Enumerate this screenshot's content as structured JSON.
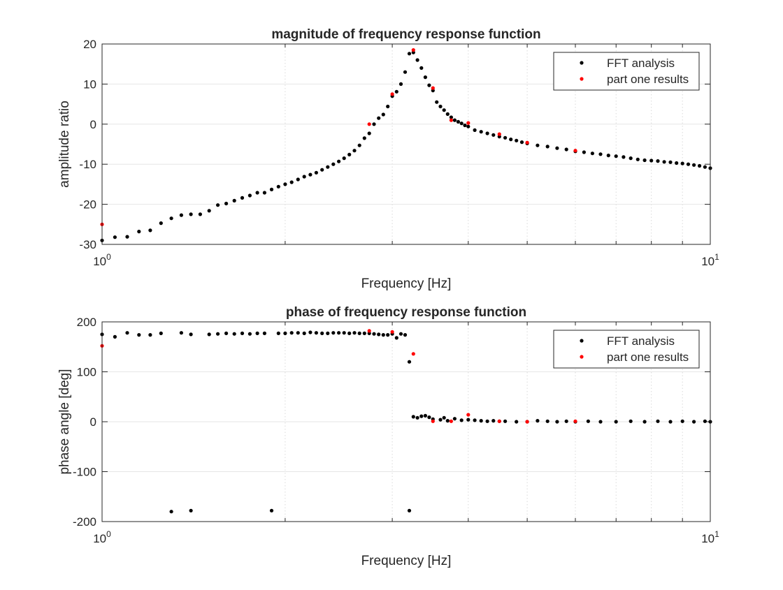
{
  "chart_data": [
    {
      "type": "scatter",
      "title": "magnitude of frequency response function",
      "xlabel": "Frequency [Hz]",
      "ylabel": "amplitude ratio",
      "xscale": "log",
      "xlim": [
        1,
        10
      ],
      "ylim": [
        -30,
        20
      ],
      "xtick_labels": [
        {
          "base": "10",
          "exp": "0"
        },
        {
          "base": "10",
          "exp": "1"
        }
      ],
      "ytick_labels": [
        "-30",
        "-20",
        "-10",
        "0",
        "10",
        "20"
      ],
      "grid": true,
      "legend_position": "top-right",
      "series": [
        {
          "name": "FFT analysis",
          "color": "#000000",
          "x": [
            1.0,
            1.05,
            1.1,
            1.15,
            1.2,
            1.25,
            1.3,
            1.35,
            1.4,
            1.45,
            1.5,
            1.55,
            1.6,
            1.65,
            1.7,
            1.75,
            1.8,
            1.85,
            1.9,
            1.95,
            2.0,
            2.05,
            2.1,
            2.15,
            2.2,
            2.25,
            2.3,
            2.35,
            2.4,
            2.45,
            2.5,
            2.55,
            2.6,
            2.65,
            2.7,
            2.75,
            2.8,
            2.85,
            2.9,
            2.95,
            3.0,
            3.05,
            3.1,
            3.15,
            3.2,
            3.25,
            3.3,
            3.35,
            3.4,
            3.45,
            3.5,
            3.55,
            3.6,
            3.65,
            3.7,
            3.75,
            3.8,
            3.85,
            3.9,
            3.95,
            4.0,
            4.1,
            4.2,
            4.3,
            4.4,
            4.5,
            4.6,
            4.7,
            4.8,
            4.9,
            5.0,
            5.2,
            5.4,
            5.6,
            5.8,
            6.0,
            6.2,
            6.4,
            6.6,
            6.8,
            7.0,
            7.2,
            7.4,
            7.6,
            7.8,
            8.0,
            8.2,
            8.4,
            8.6,
            8.8,
            9.0,
            9.2,
            9.4,
            9.6,
            9.8,
            10.0
          ],
          "y": [
            -29,
            -28.2,
            -28.1,
            -26.8,
            -26.5,
            -24.7,
            -23.5,
            -22.7,
            -22.5,
            -22.5,
            -21.6,
            -20.2,
            -19.8,
            -19.1,
            -18.4,
            -17.8,
            -17.1,
            -17.1,
            -16.3,
            -15.6,
            -15.0,
            -14.5,
            -13.8,
            -13.1,
            -12.6,
            -12.1,
            -11.4,
            -10.7,
            -10.0,
            -9.3,
            -8.5,
            -7.6,
            -6.6,
            -5.3,
            -3.5,
            -2.3,
            0.0,
            1.5,
            2.4,
            4.4,
            7.0,
            8.1,
            10.0,
            13.0,
            17.6,
            17.9,
            16.0,
            14.0,
            11.7,
            9.7,
            8.4,
            5.5,
            4.4,
            3.5,
            2.5,
            1.7,
            1.0,
            0.6,
            0.2,
            -0.3,
            -0.6,
            -1.5,
            -1.9,
            -2.3,
            -2.7,
            -3.1,
            -3.4,
            -3.8,
            -4.1,
            -4.5,
            -4.8,
            -5.3,
            -5.6,
            -6.0,
            -6.3,
            -6.8,
            -7.0,
            -7.3,
            -7.5,
            -7.8,
            -8.0,
            -8.2,
            -8.5,
            -8.8,
            -9.0,
            -9.1,
            -9.2,
            -9.4,
            -9.5,
            -9.7,
            -9.8,
            -10.0,
            -10.2,
            -10.4,
            -10.7,
            -11.0
          ]
        },
        {
          "name": "part one results",
          "color": "#ff0000",
          "x": [
            1.0,
            2.75,
            3.0,
            3.25,
            3.5,
            3.75,
            4.0,
            4.5,
            5.0,
            6.0
          ],
          "y": [
            -25.0,
            0.0,
            7.5,
            18.5,
            9.0,
            1.0,
            0.3,
            -2.5,
            -4.6,
            -6.6
          ]
        }
      ]
    },
    {
      "type": "scatter",
      "title": "phase of frequency response function",
      "xlabel": "Frequency [Hz]",
      "ylabel": "phase angle [deg]",
      "xscale": "log",
      "xlim": [
        1,
        10
      ],
      "ylim": [
        -200,
        200
      ],
      "xtick_labels": [
        {
          "base": "10",
          "exp": "0"
        },
        {
          "base": "10",
          "exp": "1"
        }
      ],
      "ytick_labels": [
        "-200",
        "-100",
        "0",
        "100",
        "200"
      ],
      "grid": true,
      "legend_position": "top-right",
      "series": [
        {
          "name": "FFT analysis",
          "color": "#000000",
          "x": [
            1.0,
            1.05,
            1.1,
            1.15,
            1.2,
            1.25,
            1.35,
            1.4,
            1.5,
            1.55,
            1.6,
            1.65,
            1.7,
            1.75,
            1.8,
            1.85,
            1.95,
            2.0,
            2.05,
            2.1,
            2.15,
            2.2,
            2.25,
            2.3,
            2.35,
            2.4,
            2.45,
            2.5,
            2.55,
            2.6,
            2.65,
            2.7,
            2.75,
            2.8,
            2.85,
            2.9,
            2.95,
            3.0,
            3.05,
            3.1,
            3.15,
            3.2,
            3.25,
            3.3,
            3.35,
            3.4,
            3.45,
            3.5,
            3.6,
            3.65,
            3.7,
            3.8,
            3.9,
            4.0,
            4.1,
            4.2,
            4.3,
            4.4,
            4.5,
            4.6,
            4.8,
            5.0,
            5.2,
            5.4,
            5.6,
            5.8,
            6.0,
            6.3,
            6.6,
            7.0,
            7.4,
            7.8,
            8.2,
            8.6,
            9.0,
            9.4,
            9.8,
            10.0,
            1.3,
            1.4,
            1.9,
            3.2
          ],
          "y": [
            175,
            170,
            178,
            174,
            174,
            177,
            178,
            175,
            175,
            176,
            177,
            176,
            177,
            176,
            177,
            177,
            177,
            177,
            178,
            178,
            177,
            179,
            178,
            177,
            177,
            178,
            178,
            178,
            177,
            178,
            177,
            177,
            177,
            176,
            175,
            174,
            174,
            176,
            168,
            176,
            174,
            120,
            10,
            8,
            11,
            12,
            9,
            5,
            4,
            8,
            2,
            6,
            3,
            4,
            3,
            2,
            1,
            2,
            1,
            1,
            0,
            0,
            2,
            1,
            0,
            1,
            0,
            1,
            0,
            0,
            1,
            0,
            1,
            0,
            1,
            0,
            1,
            0,
            -180,
            -178,
            -178,
            -178
          ]
        },
        {
          "name": "part one results",
          "color": "#ff0000",
          "x": [
            1.0,
            2.75,
            3.0,
            3.25,
            3.5,
            3.75,
            4.0,
            4.5,
            5.0,
            6.0
          ],
          "y": [
            152,
            182,
            180,
            136,
            1,
            1,
            14,
            1,
            0,
            1
          ]
        }
      ]
    }
  ]
}
